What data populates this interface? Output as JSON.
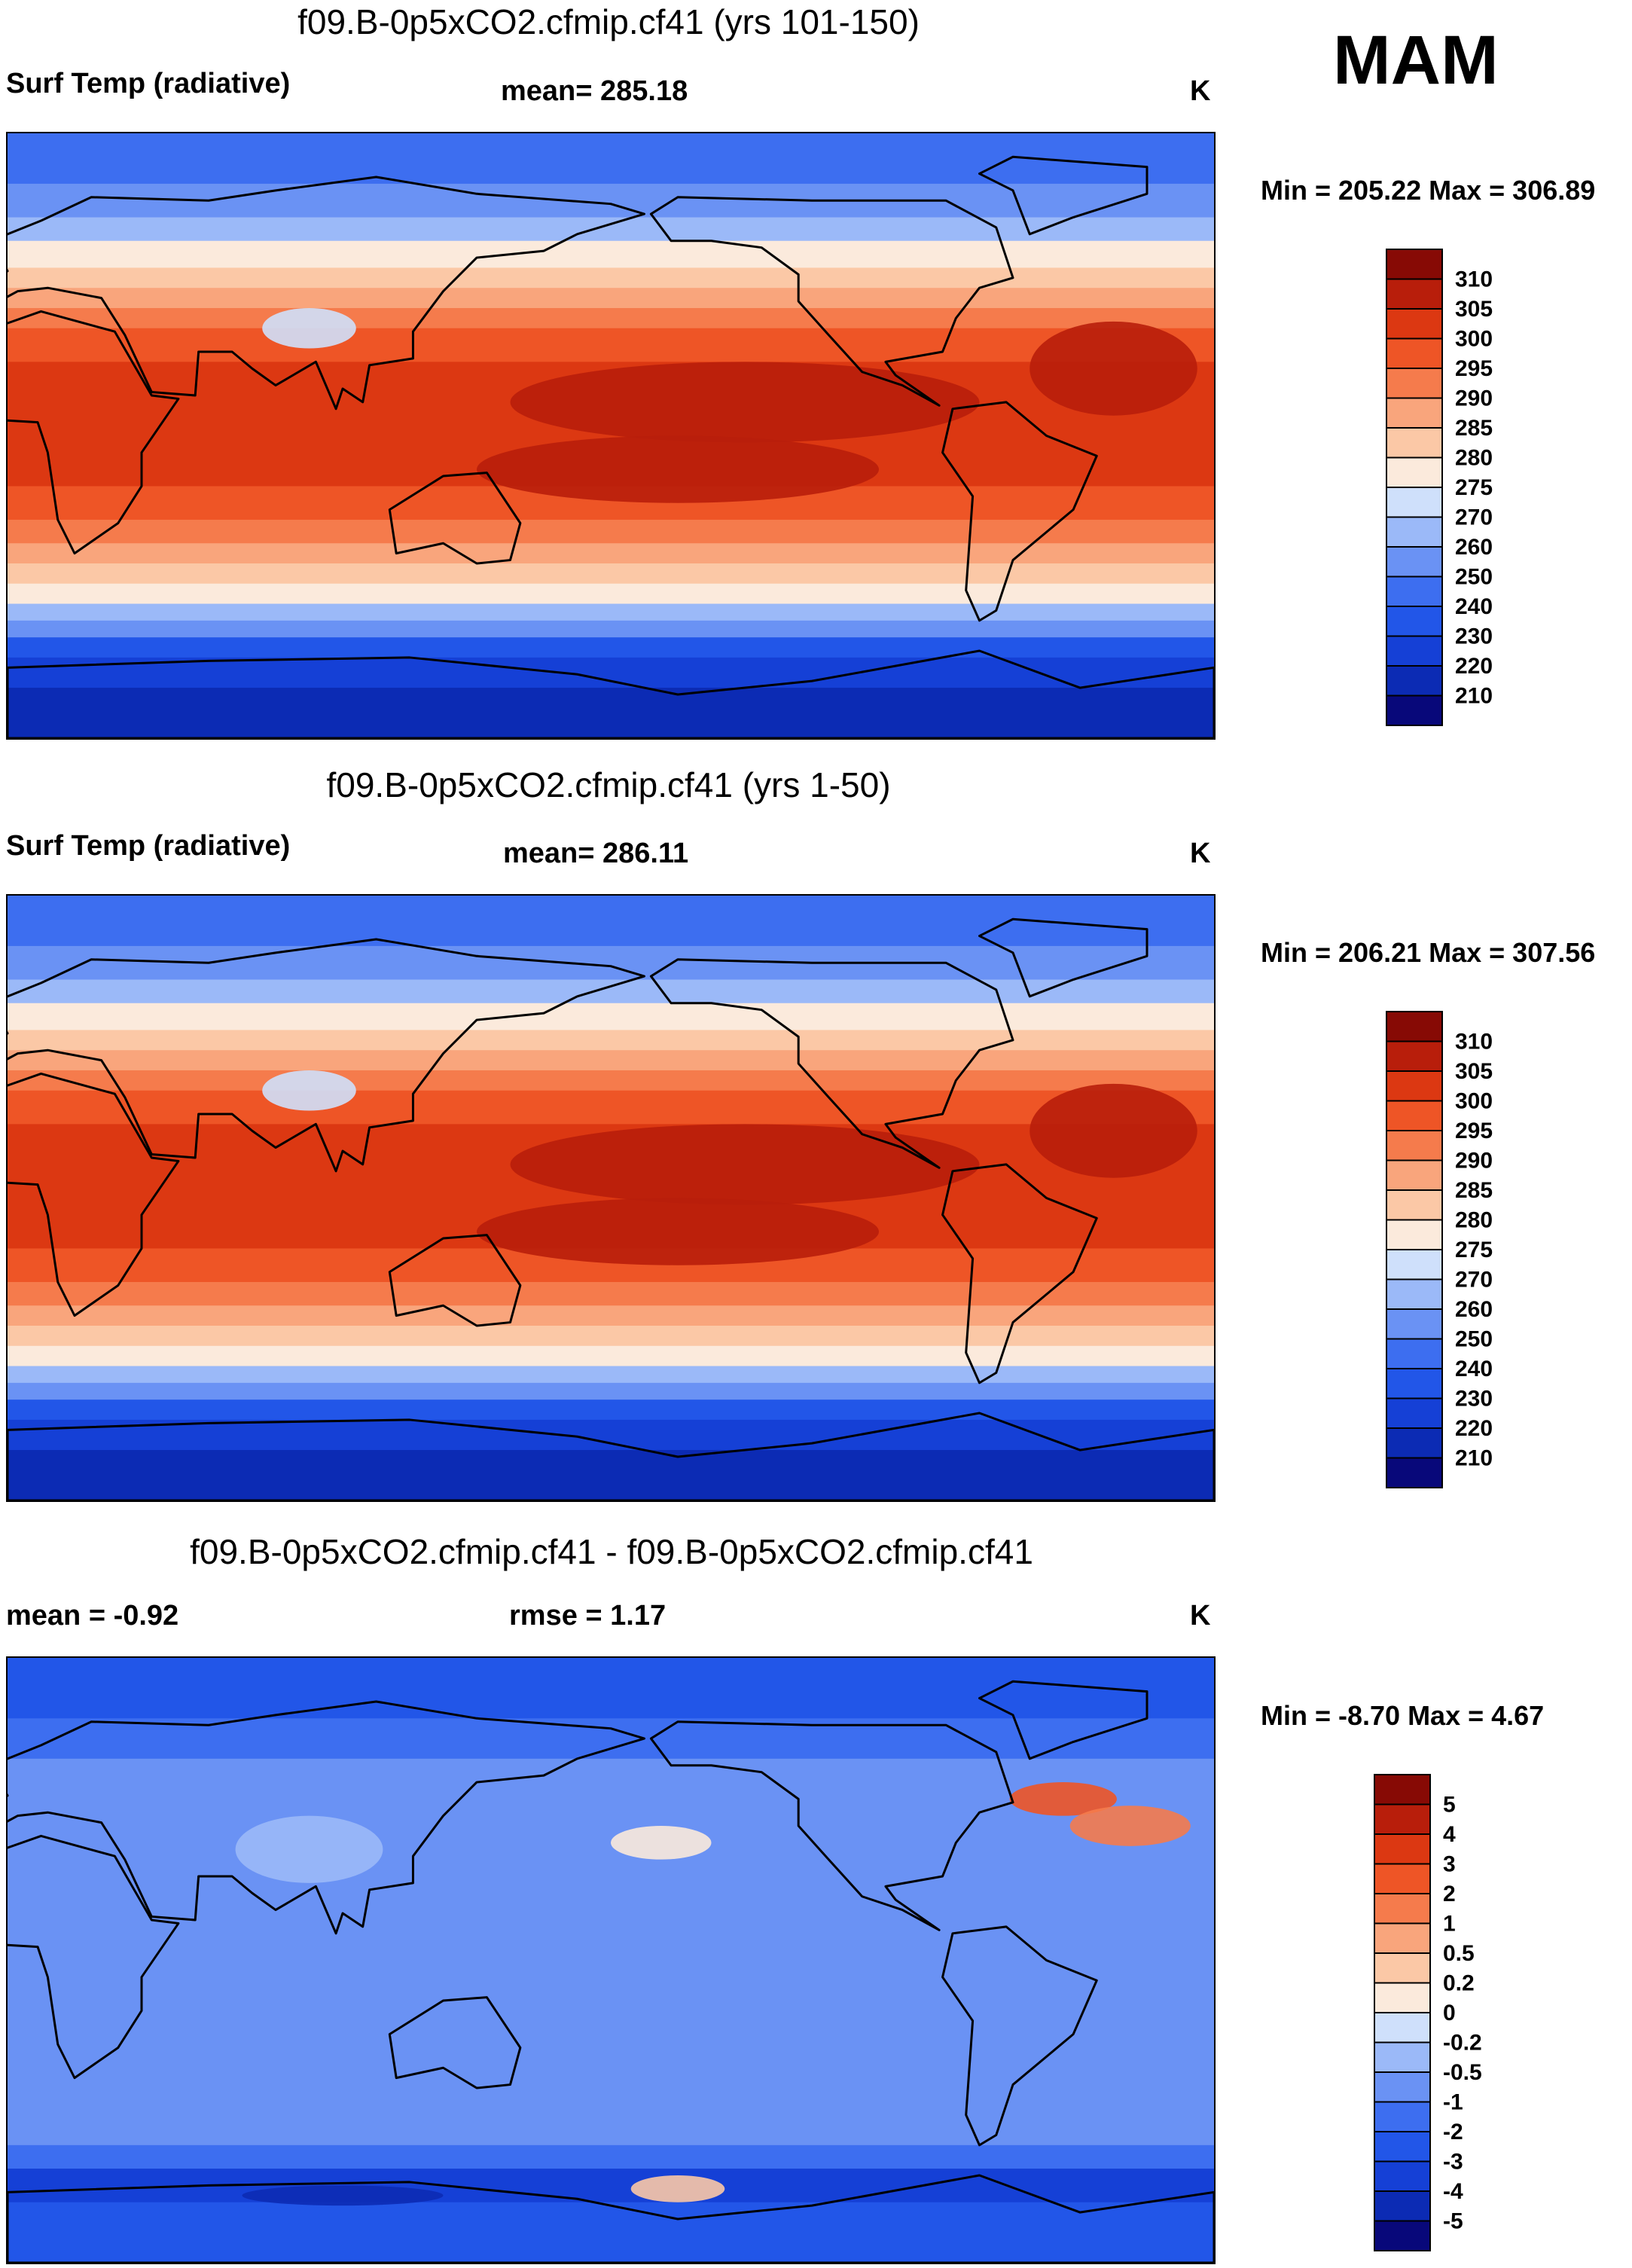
{
  "season": "MAM",
  "units": "K",
  "panels": [
    {
      "title": "f09.B-0p5xCO2.cfmip.cf41 (yrs 101-150)",
      "left_label": "Surf Temp (radiative)",
      "stat_label": "mean= 285.18",
      "right_stat": "",
      "units": "K",
      "minmax": "Min = 205.22 Max = 306.89",
      "palette": "temp"
    },
    {
      "title": "f09.B-0p5xCO2.cfmip.cf41 (yrs 1-50)",
      "left_label": "Surf Temp (radiative)",
      "stat_label": "mean= 286.11",
      "right_stat": "",
      "units": "K",
      "minmax": "Min = 206.21 Max = 307.56",
      "palette": "temp"
    },
    {
      "title": "f09.B-0p5xCO2.cfmip.cf41 - f09.B-0p5xCO2.cfmip.cf41",
      "left_label": "mean =  -0.92",
      "stat_label": "rmse =   1.17",
      "right_stat": "",
      "units": "K",
      "minmax": "Min =  -8.70 Max =   4.67",
      "palette": "diff"
    }
  ],
  "chart_data": [
    {
      "type": "heatmap",
      "title": "f09.B-0p5xCO2.cfmip.cf41 (yrs 101-150)",
      "variable": "Surf Temp (radiative)",
      "units": "K",
      "mean": 285.18,
      "min": 205.22,
      "max": 306.89,
      "levels": [
        210,
        220,
        230,
        240,
        250,
        260,
        270,
        275,
        280,
        285,
        290,
        295,
        300,
        305,
        310
      ],
      "colors": [
        "#08087a",
        "#0c2bb4",
        "#1540d6",
        "#2256e8",
        "#3d6ef0",
        "#6a92f4",
        "#9bb9f8",
        "#cfe0fb",
        "#fbeadc",
        "#fbc8a6",
        "#f9a57c",
        "#f57b4c",
        "#ee5526",
        "#dc3812",
        "#b81e0b",
        "#870a05"
      ],
      "legend_labels": [
        "310",
        "305",
        "300",
        "295",
        "290",
        "285",
        "280",
        "275",
        "270",
        "260",
        "250",
        "240",
        "230",
        "220",
        "210"
      ],
      "xlim": [
        0,
        360
      ],
      "ylim": [
        -90,
        90
      ]
    },
    {
      "type": "heatmap",
      "title": "f09.B-0p5xCO2.cfmip.cf41 (yrs 1-50)",
      "variable": "Surf Temp (radiative)",
      "units": "K",
      "mean": 286.11,
      "min": 206.21,
      "max": 307.56,
      "levels": [
        210,
        220,
        230,
        240,
        250,
        260,
        270,
        275,
        280,
        285,
        290,
        295,
        300,
        305,
        310
      ],
      "colors": [
        "#08087a",
        "#0c2bb4",
        "#1540d6",
        "#2256e8",
        "#3d6ef0",
        "#6a92f4",
        "#9bb9f8",
        "#cfe0fb",
        "#fbeadc",
        "#fbc8a6",
        "#f9a57c",
        "#f57b4c",
        "#ee5526",
        "#dc3812",
        "#b81e0b",
        "#870a05"
      ],
      "legend_labels": [
        "310",
        "305",
        "300",
        "295",
        "290",
        "285",
        "280",
        "275",
        "270",
        "260",
        "250",
        "240",
        "230",
        "220",
        "210"
      ],
      "xlim": [
        0,
        360
      ],
      "ylim": [
        -90,
        90
      ]
    },
    {
      "type": "heatmap",
      "title": "f09.B-0p5xCO2.cfmip.cf41 - f09.B-0p5xCO2.cfmip.cf41",
      "variable": "difference",
      "units": "K",
      "mean": -0.92,
      "rmse": 1.17,
      "min": -8.7,
      "max": 4.67,
      "levels": [
        -5,
        -4,
        -3,
        -2,
        -1,
        -0.5,
        -0.2,
        0,
        0.2,
        0.5,
        1,
        2,
        3,
        4,
        5
      ],
      "colors": [
        "#08087a",
        "#0c2bb4",
        "#1540d6",
        "#2256e8",
        "#3d6ef0",
        "#6a92f4",
        "#9bb9f8",
        "#cfe0fb",
        "#fbeadc",
        "#fbc8a6",
        "#f9a57c",
        "#f57b4c",
        "#ee5526",
        "#dc3812",
        "#b81e0b",
        "#870a05"
      ],
      "legend_labels": [
        "5",
        "4",
        "3",
        "2",
        "1",
        "0.5",
        "0.2",
        "0",
        "-0.2",
        "-0.5",
        "-1",
        "-2",
        "-3",
        "-4",
        "-5"
      ],
      "xlim": [
        0,
        360
      ],
      "ylim": [
        -90,
        90
      ]
    }
  ]
}
